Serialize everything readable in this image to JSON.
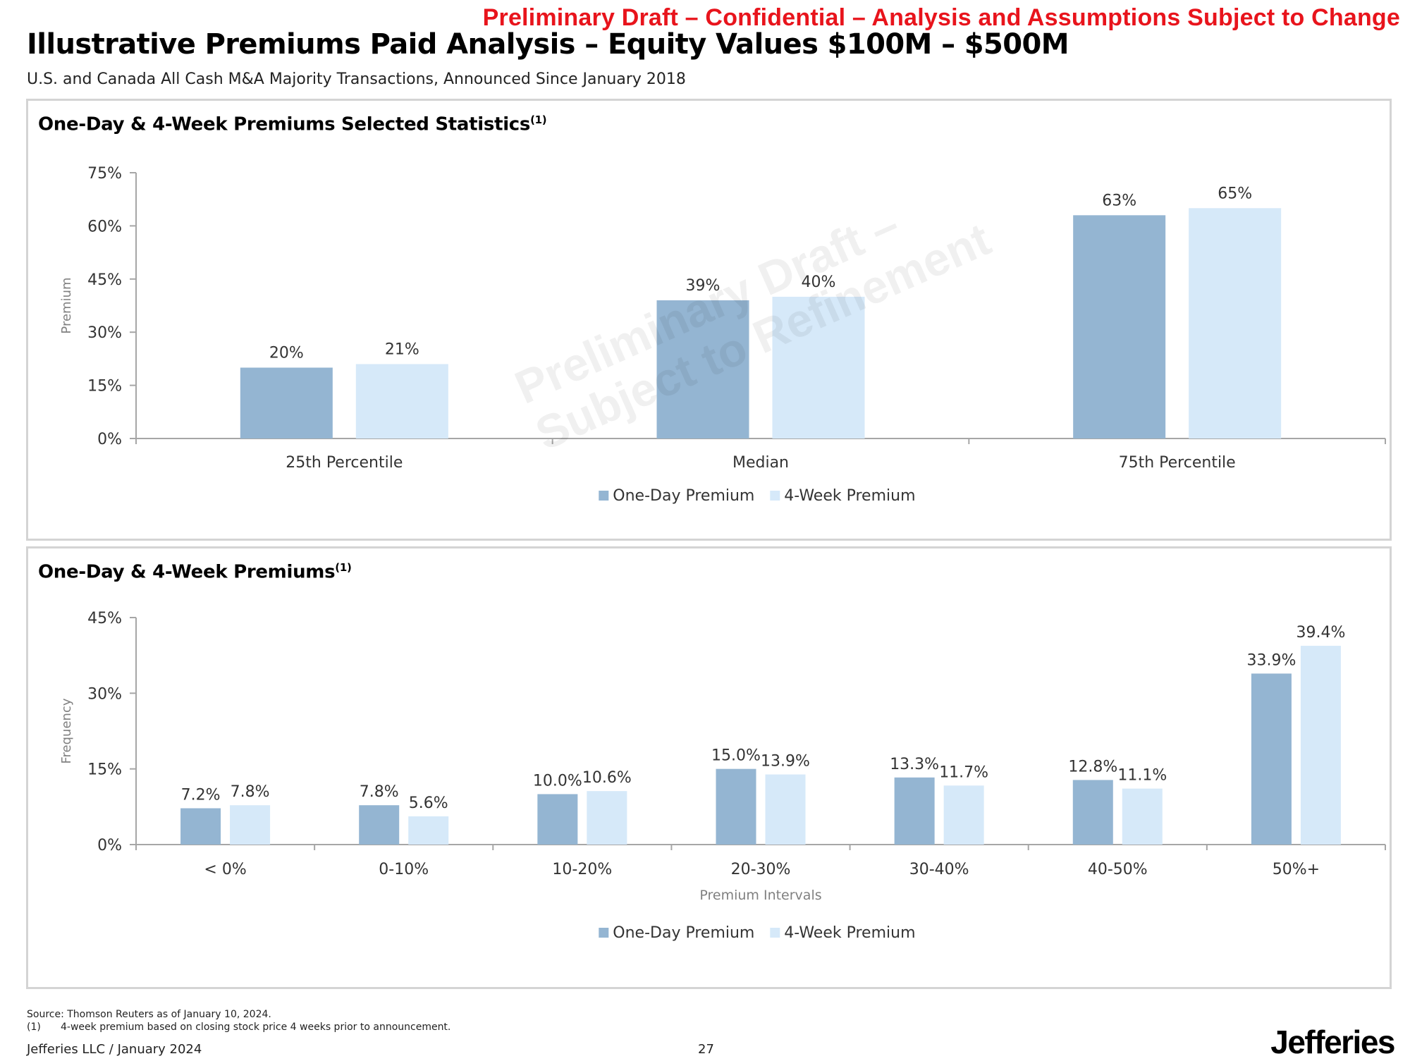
{
  "header": {
    "draft_banner": "Preliminary Draft – Confidential – Analysis and Assumptions Subject to Change",
    "title": "Illustrative Premiums Paid Analysis – Equity Values $100M – $500M",
    "subtitle": "U.S. and Canada All Cash M&A Majority Transactions, Announced Since January 2018"
  },
  "watermark": {
    "line1": "Preliminary Draft –",
    "line2": "Subject to Refinement"
  },
  "colors": {
    "one_day": "#94b5d2",
    "four_week": "#d6e9f9",
    "axis": "#a6a6a6",
    "text": "#333333",
    "muted_text": "#808080"
  },
  "chart_data": [
    {
      "type": "bar",
      "title": "One-Day & 4-Week Premiums Selected Statistics",
      "title_footnote": "(1)",
      "categories": [
        "25th Percentile",
        "Median",
        "75th Percentile"
      ],
      "series": [
        {
          "name": "One-Day Premium",
          "values": [
            20,
            39,
            63
          ],
          "labels": [
            "20%",
            "39%",
            "63%"
          ]
        },
        {
          "name": "4-Week Premium",
          "values": [
            21,
            40,
            65
          ],
          "labels": [
            "21%",
            "40%",
            "65%"
          ]
        }
      ],
      "ylabel": "Premium",
      "xlabel": "",
      "ylim": [
        0,
        75
      ],
      "yticks": [
        0,
        15,
        30,
        45,
        60,
        75
      ],
      "ytick_labels": [
        "0%",
        "15%",
        "30%",
        "45%",
        "60%",
        "75%"
      ],
      "grid": false,
      "legend": "bottom-center"
    },
    {
      "type": "bar",
      "title": "One-Day & 4-Week Premiums",
      "title_footnote": "(1)",
      "categories": [
        "< 0%",
        "0-10%",
        "10-20%",
        "20-30%",
        "30-40%",
        "40-50%",
        "50%+"
      ],
      "series": [
        {
          "name": "One-Day Premium",
          "values": [
            7.2,
            7.8,
            10.0,
            15.0,
            13.3,
            12.8,
            33.9
          ],
          "labels": [
            "7.2%",
            "7.8%",
            "10.0%",
            "15.0%",
            "13.3%",
            "12.8%",
            "33.9%"
          ]
        },
        {
          "name": "4-Week Premium",
          "values": [
            7.8,
            5.6,
            10.6,
            13.9,
            11.7,
            11.1,
            39.4
          ],
          "labels": [
            "7.8%",
            "5.6%",
            "10.6%",
            "13.9%",
            "11.7%",
            "11.1%",
            "39.4%"
          ]
        }
      ],
      "ylabel": "Frequency",
      "xlabel": "Premium Intervals",
      "ylim": [
        0,
        45
      ],
      "yticks": [
        0,
        15,
        30,
        45
      ],
      "ytick_labels": [
        "0%",
        "15%",
        "30%",
        "45%"
      ],
      "grid": false,
      "legend": "bottom-center"
    }
  ],
  "footer": {
    "source": "Source: Thomson Reuters as of January 10, 2024.",
    "note_number": "(1)",
    "note_text": "4-week premium based on closing stock price 4 weeks prior to announcement.",
    "company": "Jefferies LLC  /  January 2024",
    "page_number": "27",
    "logo": "Jefferies"
  }
}
